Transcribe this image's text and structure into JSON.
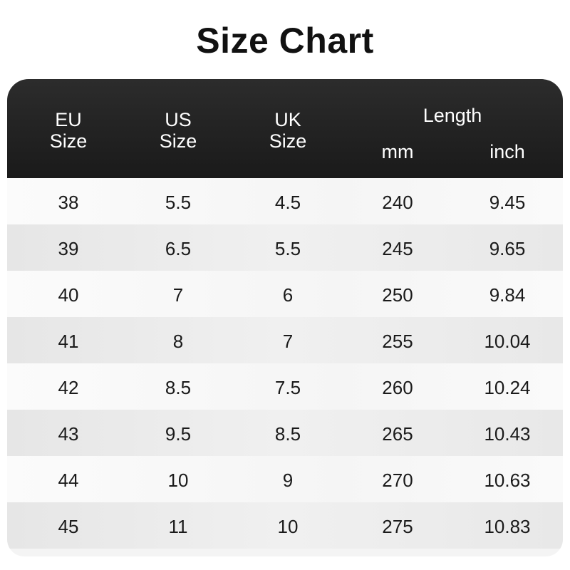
{
  "title": "Size Chart",
  "header": {
    "eu": [
      "EU",
      "Size"
    ],
    "us": [
      "US",
      "Size"
    ],
    "uk": [
      "UK",
      "Size"
    ],
    "length": "Length",
    "mm": "mm",
    "inch": "inch"
  },
  "colors": {
    "header_bg": "#1e1e1e",
    "row_light": "#f9f9f9",
    "row_dark": "#e9e9e9"
  },
  "rows": [
    [
      "38",
      "5.5",
      "4.5",
      "240",
      "9.45"
    ],
    [
      "39",
      "6.5",
      "5.5",
      "245",
      "9.65"
    ],
    [
      "40",
      "7",
      "6",
      "250",
      "9.84"
    ],
    [
      "41",
      "8",
      "7",
      "255",
      "10.04"
    ],
    [
      "42",
      "8.5",
      "7.5",
      "260",
      "10.24"
    ],
    [
      "43",
      "9.5",
      "8.5",
      "265",
      "10.43"
    ],
    [
      "44",
      "10",
      "9",
      "270",
      "10.63"
    ],
    [
      "45",
      "11",
      "10",
      "275",
      "10.83"
    ]
  ]
}
